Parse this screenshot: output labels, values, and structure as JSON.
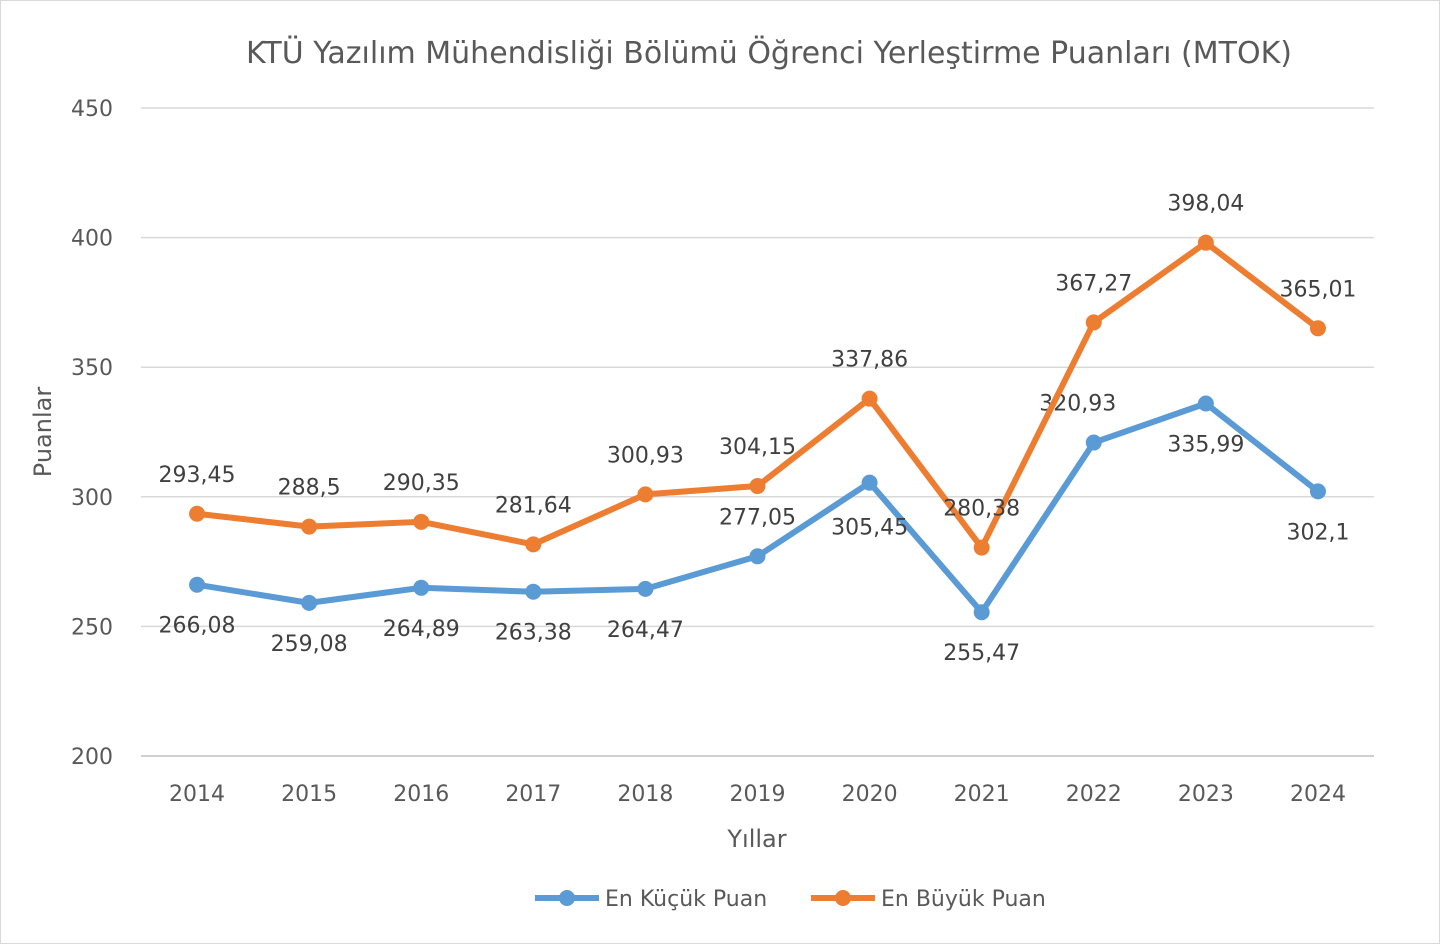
{
  "chart_data": {
    "type": "line",
    "title": "KTÜ Yazılım Mühendisliği Bölümü Öğrenci Yerleştirme Puanları (MTOK)",
    "xlabel": "Yıllar",
    "ylabel": "Puanlar",
    "categories": [
      "2014",
      "2015",
      "2016",
      "2017",
      "2018",
      "2019",
      "2020",
      "2021",
      "2022",
      "2023",
      "2024"
    ],
    "ylim": [
      200,
      450
    ],
    "yticks": [
      200,
      250,
      300,
      350,
      400,
      450
    ],
    "grid": true,
    "legend": "bottom",
    "series": [
      {
        "name": "En Küçük Puan",
        "color": "#5b9bd5",
        "values": [
          266.08,
          259.08,
          264.89,
          263.38,
          264.47,
          277.05,
          305.45,
          255.47,
          320.93,
          335.99,
          302.1
        ],
        "labels": [
          "266,08",
          "259,08",
          "264,89",
          "263,38",
          "264,47",
          "277,05",
          "305,45",
          "255,47",
          "320,93",
          "335,99",
          "302,1"
        ]
      },
      {
        "name": "En Büyük Puan",
        "color": "#ed7d31",
        "values": [
          293.45,
          288.5,
          290.35,
          281.64,
          300.93,
          304.15,
          337.86,
          280.38,
          367.27,
          398.04,
          365.01
        ],
        "labels": [
          "293,45",
          "288,5",
          "290,35",
          "281,64",
          "300,93",
          "304,15",
          "337,86",
          "280,38",
          "367,27",
          "398,04",
          "365,01"
        ]
      }
    ]
  }
}
